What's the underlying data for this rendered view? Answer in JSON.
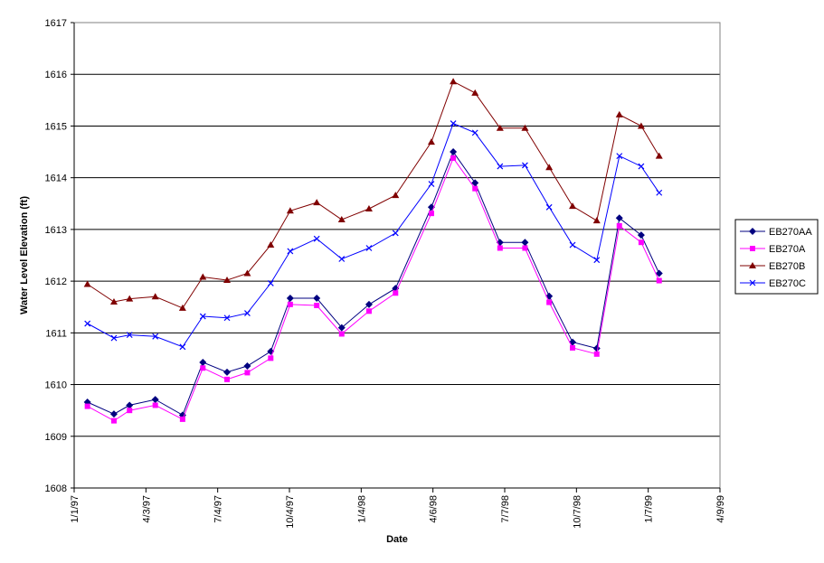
{
  "chart_data": {
    "type": "line",
    "xlabel": "Date",
    "ylabel": "Water Level Elevation (ft)",
    "x_ticks": [
      "1/1/97",
      "4/3/97",
      "7/4/97",
      "10/4/97",
      "1/4/98",
      "4/6/98",
      "7/7/98",
      "10/7/98",
      "1/7/99",
      "4/9/99"
    ],
    "x_range": [
      "1997-01-01",
      "1999-04-09"
    ],
    "ylim": [
      1608,
      1617
    ],
    "y_ticks": [
      1608,
      1609,
      1610,
      1611,
      1612,
      1613,
      1614,
      1615,
      1616,
      1617
    ],
    "grid": "horizontal",
    "legend_position": "right",
    "x": [
      "1997-01-18",
      "1997-02-21",
      "1997-03-13",
      "1997-04-15",
      "1997-05-20",
      "1997-06-15",
      "1997-07-16",
      "1997-08-11",
      "1997-09-10",
      "1997-10-05",
      "1997-11-08",
      "1997-12-10",
      "1998-01-14",
      "1998-02-17",
      "1998-04-04",
      "1998-05-02",
      "1998-05-30",
      "1998-07-01",
      "1998-08-02",
      "1998-09-02",
      "1998-10-02",
      "1998-11-02",
      "1998-12-01",
      "1998-12-29",
      "1999-01-21"
    ],
    "series": [
      {
        "name": "EB270AA",
        "color": "#000080",
        "marker": "diamond",
        "values": [
          1609.66,
          1609.43,
          1609.6,
          1609.71,
          1609.41,
          1610.43,
          1610.24,
          1610.36,
          1610.64,
          1611.67,
          1611.67,
          1611.1,
          1611.55,
          1611.86,
          1613.43,
          1614.5,
          1613.9,
          1612.75,
          1612.75,
          1611.71,
          1610.82,
          1610.7,
          1613.22,
          1612.89,
          1612.15
        ]
      },
      {
        "name": "EB270A",
        "color": "#FF00FF",
        "marker": "square",
        "values": [
          1609.58,
          1609.3,
          1609.5,
          1609.6,
          1609.33,
          1610.32,
          1610.1,
          1610.23,
          1610.51,
          1611.55,
          1611.53,
          1610.98,
          1611.42,
          1611.77,
          1613.31,
          1614.38,
          1613.79,
          1612.64,
          1612.64,
          1611.59,
          1610.71,
          1610.59,
          1613.07,
          1612.75,
          1612.01
        ]
      },
      {
        "name": "EB270B",
        "color": "#800000",
        "marker": "triangle",
        "values": [
          1611.94,
          1611.6,
          1611.66,
          1611.7,
          1611.48,
          1612.08,
          1612.02,
          1612.15,
          1612.7,
          1613.36,
          1613.52,
          1613.19,
          1613.4,
          1613.66,
          1614.69,
          1615.86,
          1615.64,
          1614.96,
          1614.96,
          1614.2,
          1613.45,
          1613.17,
          1615.22,
          1615.0,
          1614.42
        ]
      },
      {
        "name": "EB270C",
        "color": "#0000FF",
        "marker": "x",
        "values": [
          1611.18,
          1610.9,
          1610.96,
          1610.93,
          1610.73,
          1611.32,
          1611.29,
          1611.38,
          1611.96,
          1612.58,
          1612.82,
          1612.43,
          1612.64,
          1612.93,
          1613.88,
          1615.05,
          1614.87,
          1614.22,
          1614.24,
          1613.43,
          1612.7,
          1612.41,
          1614.42,
          1614.22,
          1613.71
        ]
      }
    ]
  }
}
